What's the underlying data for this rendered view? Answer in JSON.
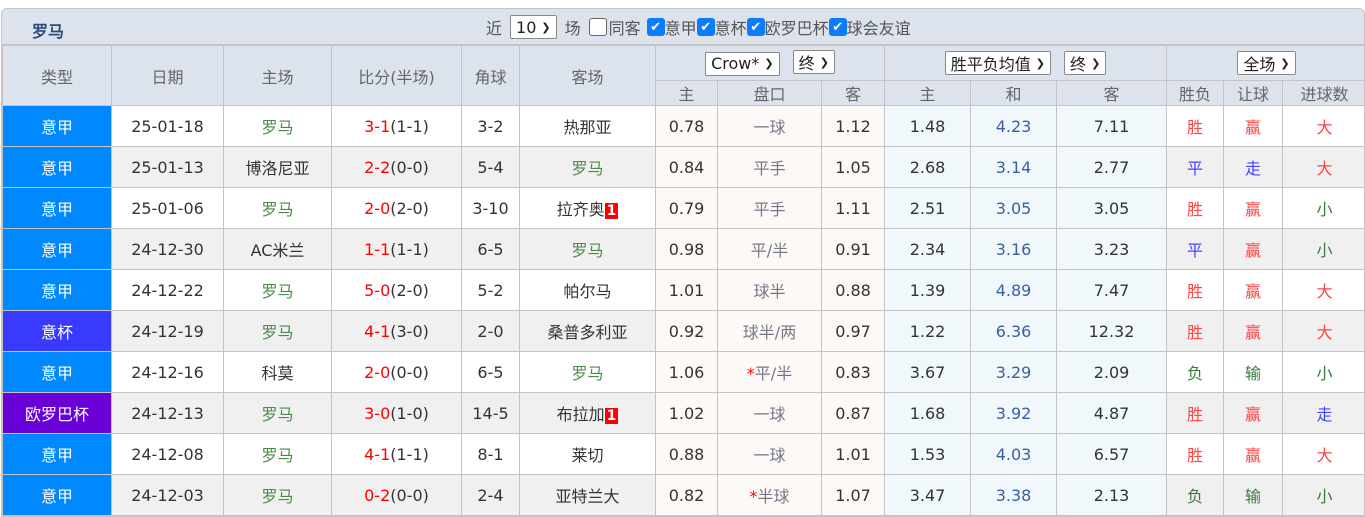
{
  "team": "罗马",
  "filters": {
    "near_label": "近",
    "count": "10",
    "games_label": "场",
    "same_away": "同客",
    "same_away_checked": false,
    "leagues": [
      {
        "label": "意甲",
        "checked": true
      },
      {
        "label": "意杯",
        "checked": true
      },
      {
        "label": "欧罗巴杯",
        "checked": true
      },
      {
        "label": "球会友谊",
        "checked": true
      }
    ]
  },
  "headers": {
    "type": "类型",
    "date": "日期",
    "home": "主场",
    "score": "比分(半场)",
    "corner": "角球",
    "away": "客场",
    "asian_company": "Crow*",
    "asian_stage": "终",
    "euro_type": "胜平负均值",
    "euro_stage": "终",
    "result_scope": "全场",
    "asian_sub": [
      "主",
      "盘口",
      "客"
    ],
    "euro_sub": [
      "主",
      "和",
      "客"
    ],
    "result_sub": [
      "胜负",
      "让球",
      "进球数"
    ]
  },
  "colors": {
    "意甲": "#0088ff",
    "意杯": "#3a3aff",
    "欧罗巴杯": "#6a00d8",
    "win": "#ff4444",
    "draw": "#4444ff",
    "lose": "#3a7a3a"
  },
  "rows": [
    {
      "type": "意甲",
      "date": "25-01-18",
      "home": "罗马",
      "ft": "3-1",
      "ht": "(1-1)",
      "corner": "3-2",
      "away": "热那亚",
      "card": "",
      "a_h": "0.78",
      "line": "一球",
      "star": false,
      "a_a": "1.12",
      "e_h": "1.48",
      "e_d": "4.23",
      "e_a": "7.11",
      "wl": "胜",
      "hc": "赢",
      "ou": "大"
    },
    {
      "type": "意甲",
      "date": "25-01-13",
      "home": "博洛尼亚",
      "ft": "2-2",
      "ht": "(0-0)",
      "corner": "5-4",
      "away": "罗马",
      "card": "",
      "a_h": "0.84",
      "line": "平手",
      "star": false,
      "a_a": "1.05",
      "e_h": "2.68",
      "e_d": "3.14",
      "e_a": "2.77",
      "wl": "平",
      "hc": "走",
      "ou": "大"
    },
    {
      "type": "意甲",
      "date": "25-01-06",
      "home": "罗马",
      "ft": "2-0",
      "ht": "(2-0)",
      "corner": "3-10",
      "away": "拉齐奥",
      "card": "1",
      "a_h": "0.79",
      "line": "平手",
      "star": false,
      "a_a": "1.11",
      "e_h": "2.51",
      "e_d": "3.05",
      "e_a": "3.05",
      "wl": "胜",
      "hc": "赢",
      "ou": "小"
    },
    {
      "type": "意甲",
      "date": "24-12-30",
      "home": "AC米兰",
      "ft": "1-1",
      "ht": "(1-1)",
      "corner": "6-5",
      "away": "罗马",
      "card": "",
      "a_h": "0.98",
      "line": "平/半",
      "star": false,
      "a_a": "0.91",
      "e_h": "2.34",
      "e_d": "3.16",
      "e_a": "3.23",
      "wl": "平",
      "hc": "赢",
      "ou": "小"
    },
    {
      "type": "意甲",
      "date": "24-12-22",
      "home": "罗马",
      "ft": "5-0",
      "ht": "(2-0)",
      "corner": "5-2",
      "away": "帕尔马",
      "card": "",
      "a_h": "1.01",
      "line": "球半",
      "star": false,
      "a_a": "0.88",
      "e_h": "1.39",
      "e_d": "4.89",
      "e_a": "7.47",
      "wl": "胜",
      "hc": "赢",
      "ou": "大"
    },
    {
      "type": "意杯",
      "date": "24-12-19",
      "home": "罗马",
      "ft": "4-1",
      "ht": "(3-0)",
      "corner": "2-0",
      "away": "桑普多利亚",
      "card": "",
      "a_h": "0.92",
      "line": "球半/两",
      "star": false,
      "a_a": "0.97",
      "e_h": "1.22",
      "e_d": "6.36",
      "e_a": "12.32",
      "wl": "胜",
      "hc": "赢",
      "ou": "大"
    },
    {
      "type": "意甲",
      "date": "24-12-16",
      "home": "科莫",
      "ft": "2-0",
      "ht": "(0-0)",
      "corner": "6-5",
      "away": "罗马",
      "card": "",
      "a_h": "1.06",
      "line": "平/半",
      "star": true,
      "a_a": "0.83",
      "e_h": "3.67",
      "e_d": "3.29",
      "e_a": "2.09",
      "wl": "负",
      "hc": "输",
      "ou": "小"
    },
    {
      "type": "欧罗巴杯",
      "date": "24-12-13",
      "home": "罗马",
      "ft": "3-0",
      "ht": "(1-0)",
      "corner": "14-5",
      "away": "布拉加",
      "card": "1",
      "a_h": "1.02",
      "line": "一球",
      "star": false,
      "a_a": "0.87",
      "e_h": "1.68",
      "e_d": "3.92",
      "e_a": "4.87",
      "wl": "胜",
      "hc": "赢",
      "ou": "走"
    },
    {
      "type": "意甲",
      "date": "24-12-08",
      "home": "罗马",
      "ft": "4-1",
      "ht": "(1-1)",
      "corner": "8-1",
      "away": "莱切",
      "card": "",
      "a_h": "0.88",
      "line": "一球",
      "star": false,
      "a_a": "1.01",
      "e_h": "1.53",
      "e_d": "4.03",
      "e_a": "6.57",
      "wl": "胜",
      "hc": "赢",
      "ou": "大"
    },
    {
      "type": "意甲",
      "date": "24-12-03",
      "home": "罗马",
      "ft": "0-2",
      "ht": "(0-0)",
      "corner": "2-4",
      "away": "亚特兰大",
      "card": "",
      "a_h": "0.82",
      "line": "半球",
      "star": true,
      "a_a": "1.07",
      "e_h": "3.47",
      "e_d": "3.38",
      "e_a": "2.13",
      "wl": "负",
      "hc": "输",
      "ou": "小"
    }
  ]
}
